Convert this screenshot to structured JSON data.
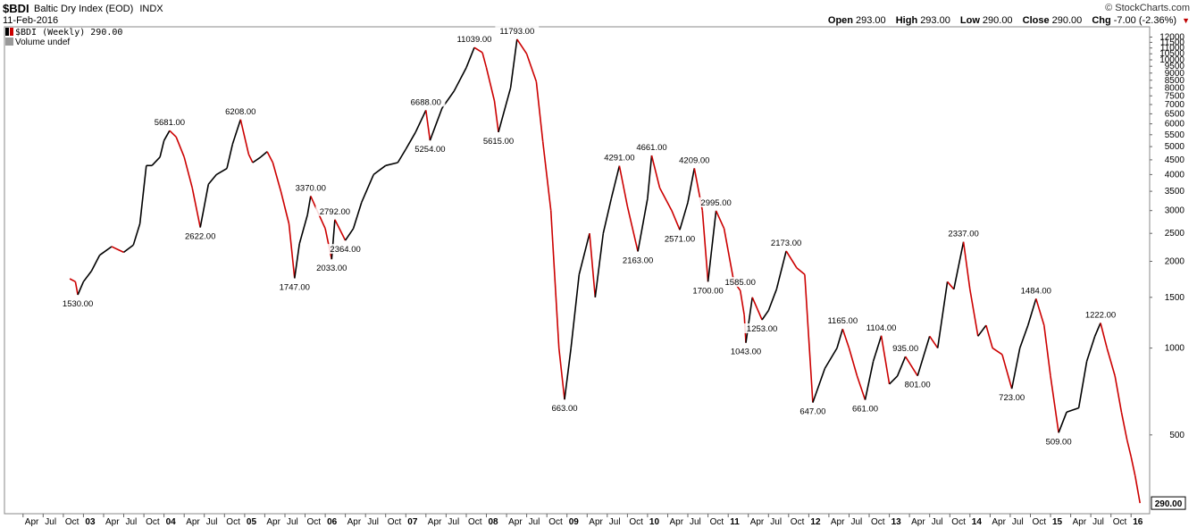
{
  "header": {
    "symbol": "$BDI",
    "name": "Baltic Dry Index (EOD)",
    "exchange": "INDX",
    "date": "11-Feb-2016",
    "credit": "© StockCharts.com",
    "open_label": "Open",
    "open": "293.00",
    "high_label": "High",
    "high": "293.00",
    "low_label": "Low",
    "low": "290.00",
    "close_label": "Close",
    "close": "290.00",
    "chg_label": "Chg",
    "chg": "-7.00 (-2.36%)"
  },
  "legend": {
    "series": "$BDI (Weekly) 290.00",
    "volume": "Volume undef"
  },
  "chart_data": {
    "type": "line",
    "title": "Baltic Dry Index (EOD)",
    "frequency": "Weekly",
    "y_scale": "log",
    "y_axis_position": "right",
    "ylim": [
      280,
      12300
    ],
    "y_ticks": [
      500,
      1000,
      1500,
      2000,
      2500,
      3000,
      3500,
      4000,
      4500,
      5000,
      5500,
      6000,
      6500,
      7000,
      7500,
      8000,
      8500,
      9000,
      9500,
      10000,
      10500,
      11000,
      11500,
      12000
    ],
    "last_value_label": "290.00",
    "x_tick_labels": [
      "Apr",
      "Jul",
      "Oct",
      "03",
      "Apr",
      "Jul",
      "Oct",
      "04",
      "Apr",
      "Jul",
      "Oct",
      "05",
      "Apr",
      "Jul",
      "Oct",
      "06",
      "Apr",
      "Jul",
      "Oct",
      "07",
      "Apr",
      "Jul",
      "Oct",
      "08",
      "Apr",
      "Jul",
      "Oct",
      "09",
      "Apr",
      "Jul",
      "Oct",
      "10",
      "Apr",
      "Jul",
      "Oct",
      "11",
      "Apr",
      "Jul",
      "Oct",
      "12",
      "Apr",
      "Jul",
      "Oct",
      "13",
      "Apr",
      "Jul",
      "Oct",
      "14",
      "Apr",
      "Jul",
      "Oct",
      "15",
      "Apr",
      "Jul",
      "Oct",
      "16"
    ],
    "x_tick_times": [
      2002.25,
      2002.5,
      2002.75,
      2003.0,
      2003.25,
      2003.5,
      2003.75,
      2004.0,
      2004.25,
      2004.5,
      2004.75,
      2005.0,
      2005.25,
      2005.5,
      2005.75,
      2006.0,
      2006.25,
      2006.5,
      2006.75,
      2007.0,
      2007.25,
      2007.5,
      2007.75,
      2008.0,
      2008.25,
      2008.5,
      2008.75,
      2009.0,
      2009.25,
      2009.5,
      2009.75,
      2010.0,
      2010.25,
      2010.5,
      2010.75,
      2011.0,
      2011.25,
      2011.5,
      2011.75,
      2012.0,
      2012.25,
      2012.5,
      2012.75,
      2013.0,
      2013.25,
      2013.5,
      2013.75,
      2014.0,
      2014.25,
      2014.5,
      2014.75,
      2015.0,
      2015.25,
      2015.5,
      2015.75,
      2016.0
    ],
    "xlim": [
      2002.02,
      2016.23
    ],
    "up_color": "#000000",
    "down_color": "#cc0000",
    "series": [
      {
        "name": "$BDI (Weekly)",
        "points": [
          [
            2002.83,
            1740
          ],
          [
            2002.9,
            1700
          ],
          [
            2002.93,
            1530
          ],
          [
            2003.0,
            1700
          ],
          [
            2003.1,
            1850
          ],
          [
            2003.2,
            2100
          ],
          [
            2003.35,
            2250
          ],
          [
            2003.5,
            2150
          ],
          [
            2003.62,
            2280
          ],
          [
            2003.7,
            2700
          ],
          [
            2003.78,
            4300
          ],
          [
            2003.85,
            4300
          ],
          [
            2003.95,
            4600
          ],
          [
            2004.0,
            5250
          ],
          [
            2004.07,
            5681
          ],
          [
            2004.15,
            5400
          ],
          [
            2004.25,
            4600
          ],
          [
            2004.35,
            3600
          ],
          [
            2004.45,
            2622
          ],
          [
            2004.55,
            3700
          ],
          [
            2004.65,
            4000
          ],
          [
            2004.78,
            4200
          ],
          [
            2004.85,
            5100
          ],
          [
            2004.95,
            6208
          ],
          [
            2005.05,
            4700
          ],
          [
            2005.1,
            4400
          ],
          [
            2005.2,
            4600
          ],
          [
            2005.28,
            4800
          ],
          [
            2005.35,
            4400
          ],
          [
            2005.45,
            3500
          ],
          [
            2005.55,
            2700
          ],
          [
            2005.62,
            1747
          ],
          [
            2005.68,
            2300
          ],
          [
            2005.78,
            2900
          ],
          [
            2005.82,
            3370
          ],
          [
            2005.9,
            3000
          ],
          [
            2006.0,
            2600
          ],
          [
            2006.08,
            2033
          ],
          [
            2006.12,
            2792
          ],
          [
            2006.25,
            2364
          ],
          [
            2006.35,
            2600
          ],
          [
            2006.45,
            3200
          ],
          [
            2006.6,
            4000
          ],
          [
            2006.75,
            4300
          ],
          [
            2006.9,
            4400
          ],
          [
            2007.0,
            4900
          ],
          [
            2007.12,
            5600
          ],
          [
            2007.25,
            6688
          ],
          [
            2007.3,
            5254
          ],
          [
            2007.45,
            6800
          ],
          [
            2007.6,
            7800
          ],
          [
            2007.75,
            9400
          ],
          [
            2007.85,
            11039
          ],
          [
            2007.95,
            10600
          ],
          [
            2008.0,
            9400
          ],
          [
            2008.1,
            7200
          ],
          [
            2008.15,
            5615
          ],
          [
            2008.3,
            8000
          ],
          [
            2008.38,
            11793
          ],
          [
            2008.5,
            10500
          ],
          [
            2008.62,
            8400
          ],
          [
            2008.7,
            5200
          ],
          [
            2008.8,
            3000
          ],
          [
            2008.9,
            1000
          ],
          [
            2008.97,
            663
          ],
          [
            2009.05,
            1000
          ],
          [
            2009.15,
            1800
          ],
          [
            2009.28,
            2500
          ],
          [
            2009.35,
            1500
          ],
          [
            2009.45,
            2500
          ],
          [
            2009.55,
            3300
          ],
          [
            2009.65,
            4291
          ],
          [
            2009.75,
            3100
          ],
          [
            2009.88,
            2163
          ],
          [
            2010.0,
            3300
          ],
          [
            2010.05,
            4661
          ],
          [
            2010.15,
            3600
          ],
          [
            2010.3,
            3000
          ],
          [
            2010.4,
            2571
          ],
          [
            2010.5,
            3200
          ],
          [
            2010.58,
            4209
          ],
          [
            2010.68,
            3000
          ],
          [
            2010.75,
            1700
          ],
          [
            2010.85,
            2995
          ],
          [
            2010.95,
            2600
          ],
          [
            2011.07,
            1700
          ],
          [
            2011.15,
            1585
          ],
          [
            2011.2,
            1300
          ],
          [
            2011.22,
            1043
          ],
          [
            2011.3,
            1500
          ],
          [
            2011.42,
            1253
          ],
          [
            2011.5,
            1350
          ],
          [
            2011.6,
            1600
          ],
          [
            2011.72,
            2173
          ],
          [
            2011.85,
            1900
          ],
          [
            2011.95,
            1800
          ],
          [
            2012.05,
            647
          ],
          [
            2012.2,
            850
          ],
          [
            2012.35,
            1000
          ],
          [
            2012.42,
            1165
          ],
          [
            2012.5,
            1000
          ],
          [
            2012.6,
            800
          ],
          [
            2012.7,
            661
          ],
          [
            2012.8,
            900
          ],
          [
            2012.9,
            1104
          ],
          [
            2013.0,
            750
          ],
          [
            2013.1,
            800
          ],
          [
            2013.2,
            935
          ],
          [
            2013.35,
            801
          ],
          [
            2013.5,
            1100
          ],
          [
            2013.6,
            1000
          ],
          [
            2013.72,
            1700
          ],
          [
            2013.8,
            1600
          ],
          [
            2013.92,
            2337
          ],
          [
            2014.0,
            1600
          ],
          [
            2014.1,
            1100
          ],
          [
            2014.2,
            1200
          ],
          [
            2014.28,
            1000
          ],
          [
            2014.4,
            950
          ],
          [
            2014.52,
            723
          ],
          [
            2014.62,
            1000
          ],
          [
            2014.72,
            1200
          ],
          [
            2014.82,
            1484
          ],
          [
            2014.92,
            1200
          ],
          [
            2015.0,
            800
          ],
          [
            2015.1,
            509
          ],
          [
            2015.2,
            600
          ],
          [
            2015.35,
            620
          ],
          [
            2015.45,
            900
          ],
          [
            2015.55,
            1100
          ],
          [
            2015.62,
            1222
          ],
          [
            2015.7,
            1000
          ],
          [
            2015.8,
            800
          ],
          [
            2015.88,
            600
          ],
          [
            2015.95,
            480
          ],
          [
            2016.0,
            420
          ],
          [
            2016.05,
            360
          ],
          [
            2016.11,
            290
          ]
        ]
      }
    ],
    "annotations": [
      {
        "label": "1530.00",
        "x": 2002.93,
        "y": 1530,
        "pos": "below"
      },
      {
        "label": "5681.00",
        "x": 2004.07,
        "y": 5681,
        "pos": "above"
      },
      {
        "label": "2622.00",
        "x": 2004.45,
        "y": 2622,
        "pos": "below"
      },
      {
        "label": "6208.00",
        "x": 2004.95,
        "y": 6208,
        "pos": "above"
      },
      {
        "label": "1747.00",
        "x": 2005.62,
        "y": 1747,
        "pos": "below"
      },
      {
        "label": "3370.00",
        "x": 2005.82,
        "y": 3370,
        "pos": "above"
      },
      {
        "label": "2033.00",
        "x": 2006.08,
        "y": 2033,
        "pos": "below"
      },
      {
        "label": "2792.00",
        "x": 2006.12,
        "y": 2792,
        "pos": "above"
      },
      {
        "label": "2364.00",
        "x": 2006.25,
        "y": 2364,
        "pos": "below"
      },
      {
        "label": "6688.00",
        "x": 2007.25,
        "y": 6688,
        "pos": "above"
      },
      {
        "label": "5254.00",
        "x": 2007.3,
        "y": 5254,
        "pos": "below"
      },
      {
        "label": "11039.00",
        "x": 2007.85,
        "y": 11039,
        "pos": "above"
      },
      {
        "label": "5615.00",
        "x": 2008.15,
        "y": 5615,
        "pos": "below"
      },
      {
        "label": "11793.00",
        "x": 2008.38,
        "y": 11793,
        "pos": "above"
      },
      {
        "label": "663.00",
        "x": 2008.97,
        "y": 663,
        "pos": "below"
      },
      {
        "label": "4291.00",
        "x": 2009.65,
        "y": 4291,
        "pos": "above"
      },
      {
        "label": "2163.00",
        "x": 2009.88,
        "y": 2163,
        "pos": "below"
      },
      {
        "label": "4661.00",
        "x": 2010.05,
        "y": 4661,
        "pos": "above"
      },
      {
        "label": "2571.00",
        "x": 2010.4,
        "y": 2571,
        "pos": "below"
      },
      {
        "label": "4209.00",
        "x": 2010.58,
        "y": 4209,
        "pos": "above"
      },
      {
        "label": "1700.00",
        "x": 2010.75,
        "y": 1700,
        "pos": "below"
      },
      {
        "label": "2995.00",
        "x": 2010.85,
        "y": 2995,
        "pos": "above"
      },
      {
        "label": "1585.00",
        "x": 2011.15,
        "y": 1585,
        "pos": "above"
      },
      {
        "label": "1043.00",
        "x": 2011.22,
        "y": 1043,
        "pos": "below"
      },
      {
        "label": "1253.00",
        "x": 2011.42,
        "y": 1253,
        "pos": "below"
      },
      {
        "label": "2173.00",
        "x": 2011.72,
        "y": 2173,
        "pos": "above"
      },
      {
        "label": "647.00",
        "x": 2012.05,
        "y": 647,
        "pos": "below"
      },
      {
        "label": "1165.00",
        "x": 2012.42,
        "y": 1165,
        "pos": "above"
      },
      {
        "label": "661.00",
        "x": 2012.7,
        "y": 661,
        "pos": "below"
      },
      {
        "label": "1104.00",
        "x": 2012.9,
        "y": 1104,
        "pos": "above"
      },
      {
        "label": "935.00",
        "x": 2013.2,
        "y": 935,
        "pos": "above"
      },
      {
        "label": "801.00",
        "x": 2013.35,
        "y": 801,
        "pos": "below"
      },
      {
        "label": "2337.00",
        "x": 2013.92,
        "y": 2337,
        "pos": "above"
      },
      {
        "label": "723.00",
        "x": 2014.52,
        "y": 723,
        "pos": "below"
      },
      {
        "label": "1484.00",
        "x": 2014.82,
        "y": 1484,
        "pos": "above"
      },
      {
        "label": "509.00",
        "x": 2015.1,
        "y": 509,
        "pos": "below"
      },
      {
        "label": "1222.00",
        "x": 2015.62,
        "y": 1222,
        "pos": "above"
      }
    ]
  }
}
